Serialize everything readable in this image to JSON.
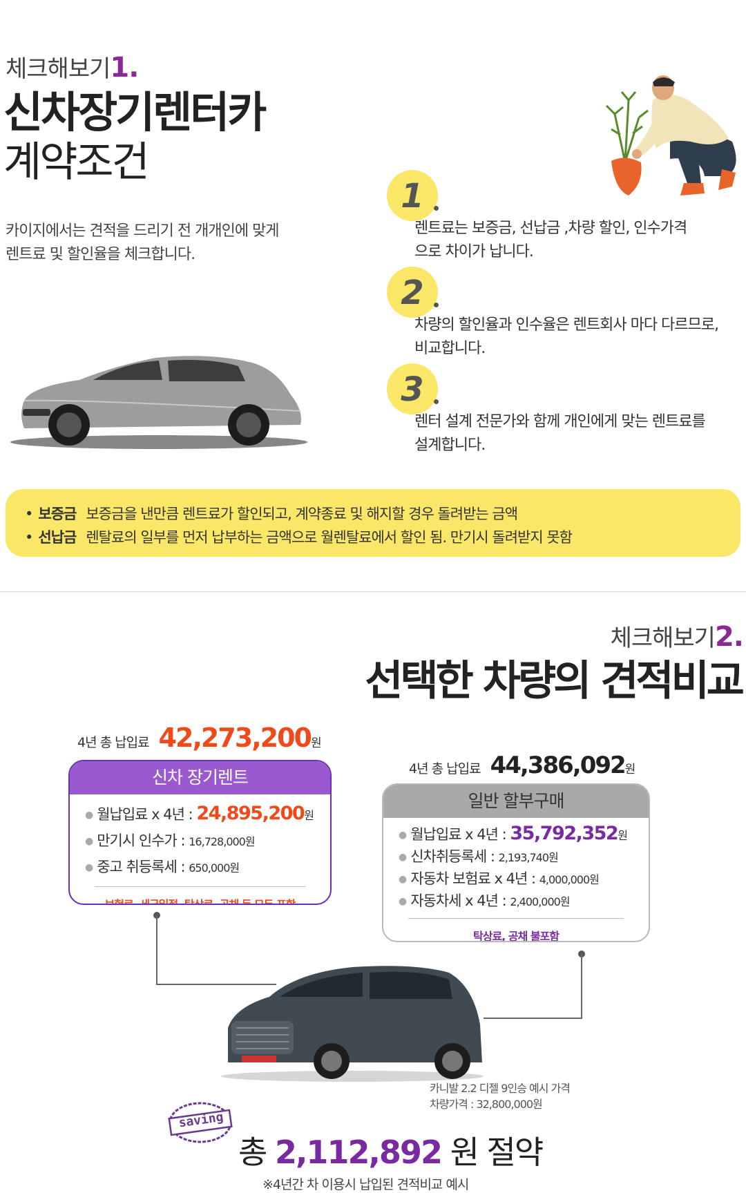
{
  "section1": {
    "check_prefix": "체크해보기",
    "check_num": "1.",
    "title": "신차장기렌터카",
    "subtitle": "계약조건",
    "intro": [
      "카이지에서는 견적을 드리기 전 개개인에 맞게",
      "렌트료 및 할인율을 체크합니다."
    ],
    "steps": [
      {
        "num": "1",
        "lines": [
          "렌트료는 보증금, 선납금 ,차량 할인, 인수가격",
          "으로 차이가 납니다."
        ]
      },
      {
        "num": "2",
        "lines": [
          "차량의 할인율과 인수율은 렌트회사 마다 다르므로,",
          "비교합니다."
        ]
      },
      {
        "num": "3",
        "lines": [
          "렌터 설계 전문가와 함께 개인에게 맞는 렌트료를",
          "설계합니다."
        ]
      }
    ],
    "info": [
      {
        "bullet": "•",
        "term": "보증금",
        "desc": "보증금을 낸만큼 렌트료가 할인되고, 계약종료 및 해지할 경우 돌려받는 금액"
      },
      {
        "bullet": "•",
        "term": "선납금",
        "desc": "렌탈료의 일부를 먼저 납부하는 금액으로 월렌탈료에서 할인 됨. 만기시 돌려받지 못함"
      }
    ]
  },
  "section2": {
    "check_prefix": "체크해보기",
    "check_num": "2.",
    "title": "선택한 차량의 견적비교",
    "rent": {
      "total_label": "4년 총 납입료",
      "total_amount": "42,273,200",
      "total_unit": "원",
      "header": "신차 장기렌트",
      "items": [
        {
          "label": "월납입료 x 4년 : ",
          "value": "24,895,200",
          "unit": "원"
        },
        {
          "label": "만기시 인수가 : ",
          "value": "16,728,000원"
        },
        {
          "label": "중고 취등록세 : ",
          "value": "650,000원"
        }
      ],
      "footer": "보험료, 세금일절, 탁상료, 공채 등 모두 포함"
    },
    "loan": {
      "total_label": "4년 총 납입료",
      "total_amount": "44,386,092",
      "total_unit": "원",
      "header": "일반 할부구매",
      "items": [
        {
          "label": "월납입료 x 4년 : ",
          "value": "35,792,352",
          "unit": "원"
        },
        {
          "label": "신차취등록세 : ",
          "value": "2,193,740원"
        },
        {
          "label": "자동차 보험료 x 4년 : ",
          "value": "4,000,000원"
        },
        {
          "label": "자동차세 x 4년 : ",
          "value": "2,400,000원"
        }
      ],
      "footer": "탁상료, 공채 불포함"
    },
    "caption": [
      "카니발 2.2 디젤 9인승 예시 가격",
      "차량가격 : 32,800,000원"
    ],
    "stamp_text": "saving",
    "saving_prefix": "총 ",
    "saving_amount": "2,112,892",
    "saving_suffix": " 원 절약",
    "footnote": "※4년간 차 이용시 납입된 견적비교 예시"
  },
  "colors": {
    "accent_purple": "#8a2896",
    "rent_header": "#9b59d0",
    "rent_border": "#6a2fb5",
    "rent_highlight": "#ee4a1a",
    "loan_header": "#a9a9a9",
    "loan_highlight": "#7a2aa0",
    "yellow": "#fbe767"
  }
}
